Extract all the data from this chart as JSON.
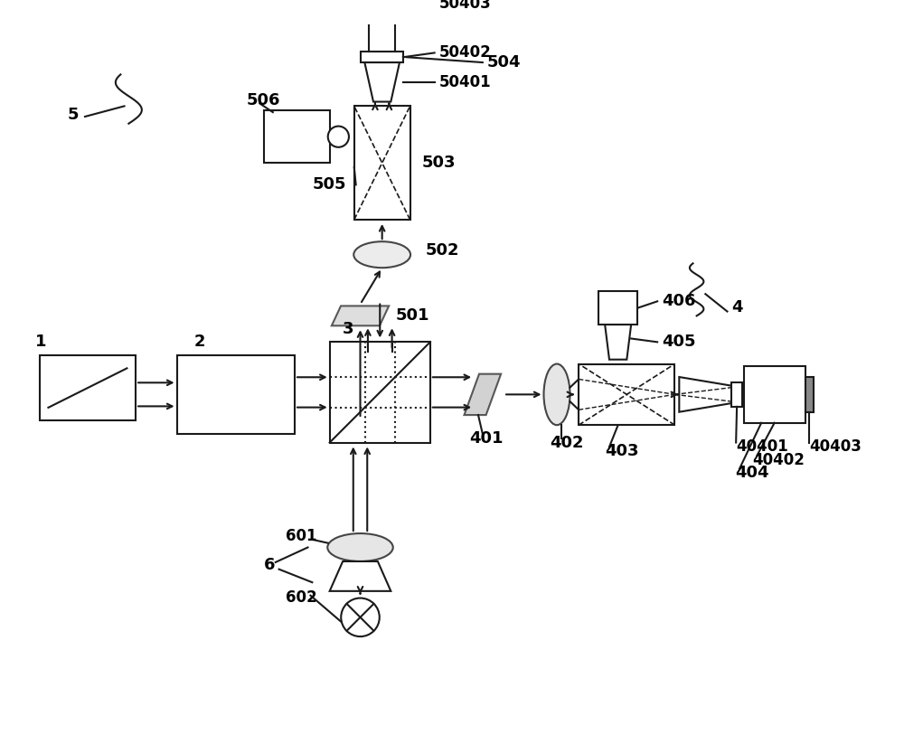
{
  "bg_color": "#ffffff",
  "line_color": "#1a1a1a",
  "label_color": "#000000",
  "label_fontsize": 13,
  "label_fontweight": "bold",
  "fig_width": 10.0,
  "fig_height": 8.23
}
